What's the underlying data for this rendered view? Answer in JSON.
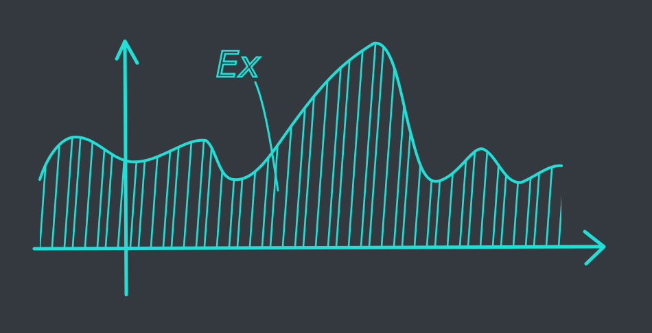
{
  "colors": {
    "background": "#343940",
    "ink": "#1fe0d6"
  },
  "labels": {
    "curve_label": "Ex"
  }
}
